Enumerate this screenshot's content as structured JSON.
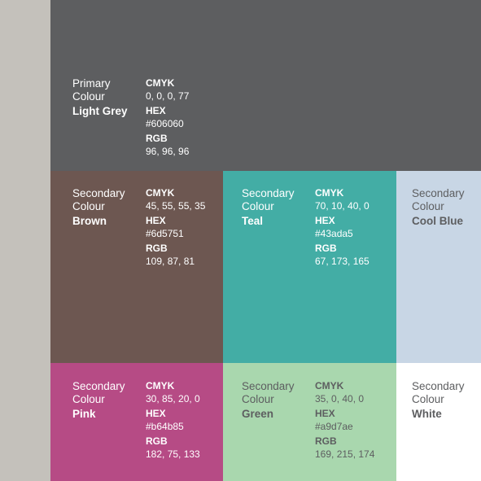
{
  "swatches": {
    "light_grey": {
      "role": "Primary\nColour",
      "name": "Light Grey",
      "cmyk_label": "CMYK",
      "cmyk": "0, 0, 0, 77",
      "hex_label": "HEX",
      "hex": "#606060",
      "rgb_label": "RGB",
      "rgb": "96, 96, 96",
      "color": "#5d5e60"
    },
    "brown": {
      "role": "Secondary\nColour",
      "name": "Brown",
      "cmyk_label": "CMYK",
      "cmyk": "45, 55, 55, 35",
      "hex_label": "HEX",
      "hex": "#6d5751",
      "rgb_label": "RGB",
      "rgb": "109, 87, 81",
      "color": "#6d5751"
    },
    "teal": {
      "role": "Secondary\nColour",
      "name": "Teal",
      "cmyk_label": "CMYK",
      "cmyk": "70, 10, 40, 0",
      "hex_label": "HEX",
      "hex": "#43ada5",
      "rgb_label": "RGB",
      "rgb": "67, 173, 165",
      "color": "#43ada5"
    },
    "cool_blue": {
      "role": "Secondary\nColour",
      "name": "Cool Blue",
      "color": "#c8d6e5"
    },
    "pink": {
      "role": "Secondary\nColour",
      "name": "Pink",
      "cmyk_label": "CMYK",
      "cmyk": "30, 85, 20, 0",
      "hex_label": "HEX",
      "hex": "#b64b85",
      "rgb_label": "RGB",
      "rgb": "182, 75, 133",
      "color": "#b64b85"
    },
    "green": {
      "role": "Secondary\nColour",
      "name": "Green",
      "cmyk_label": "CMYK",
      "cmyk": "35, 0, 40, 0",
      "hex_label": "HEX",
      "hex": "#a9d7ae",
      "rgb_label": "RGB",
      "rgb": "169, 215, 174",
      "color": "#a9d7ae"
    },
    "white": {
      "role": "Secondary\nColour",
      "name": "White",
      "color": "#ffffff"
    }
  },
  "colors": {
    "left_strip": "#c4c1bb",
    "text_light": "#ffffff",
    "text_dark": "#5d5e60"
  }
}
